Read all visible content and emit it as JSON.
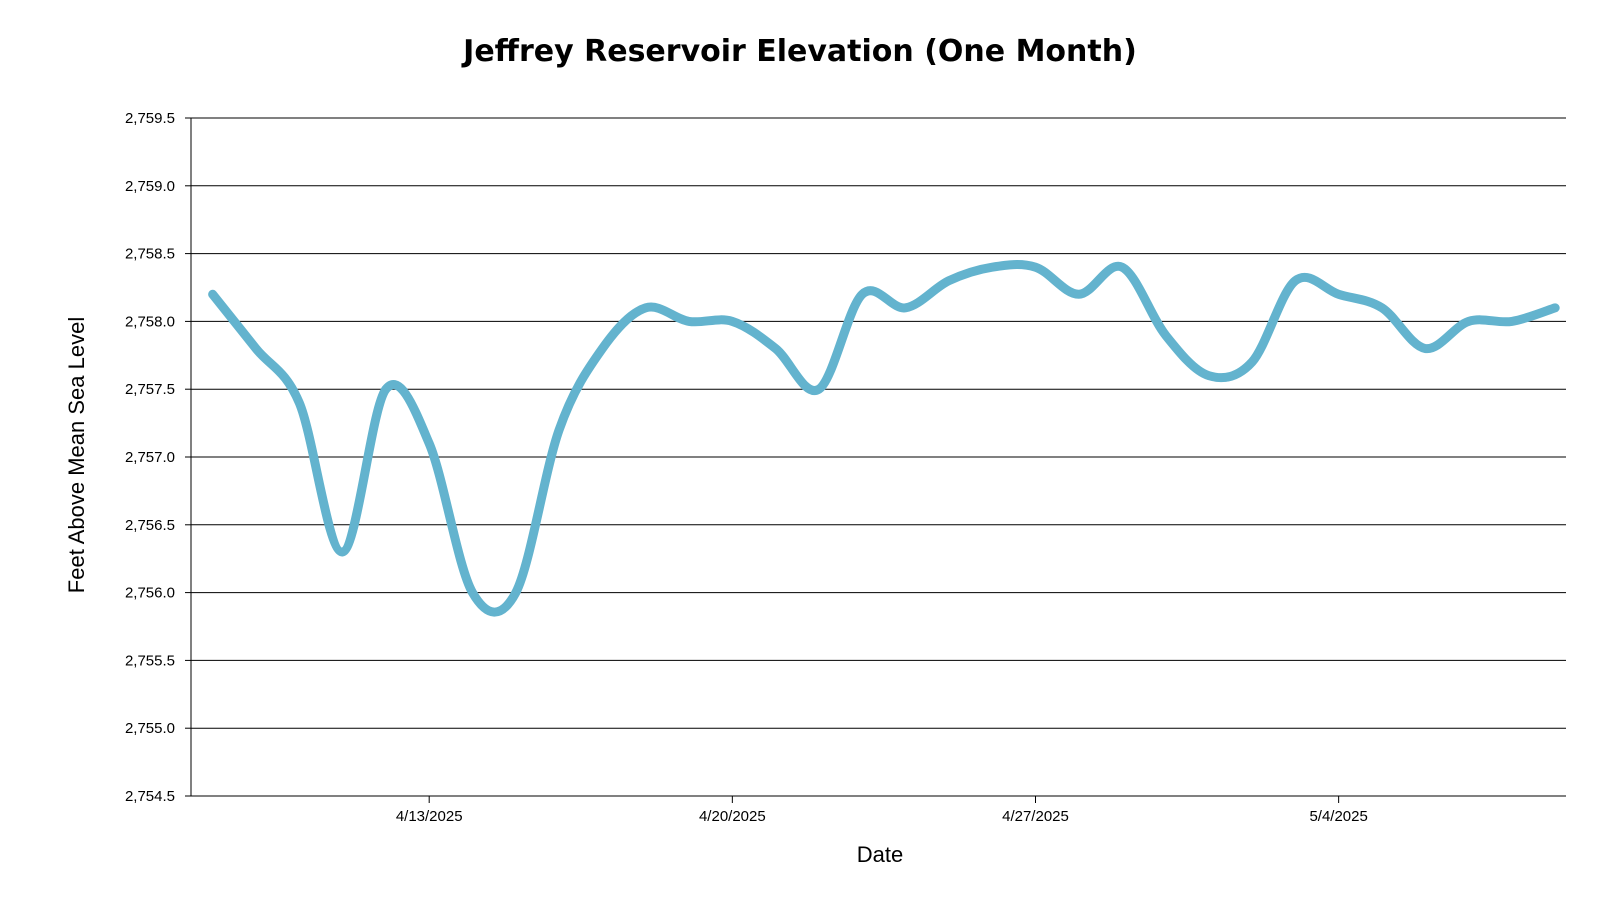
{
  "chart_data": {
    "type": "line",
    "title": "Jeffrey Reservoir Elevation (One Month)",
    "xlabel": "Date",
    "ylabel": "Feet Above Mean Sea Level",
    "ylim": [
      2754.5,
      2759.5
    ],
    "y_ticks": [
      2754.5,
      2755.0,
      2755.5,
      2756.0,
      2756.5,
      2757.0,
      2757.5,
      2758.0,
      2758.5,
      2759.0,
      2759.5
    ],
    "y_tick_labels": [
      "2,754.5",
      "2,755.0",
      "2,755.5",
      "2,756.0",
      "2,756.5",
      "2,757.0",
      "2,757.5",
      "2,758.0",
      "2,758.5",
      "2,759.0",
      "2,759.5"
    ],
    "x_range": [
      "2025-04-07T12:00",
      "2025-05-09T06:00"
    ],
    "x_ticks": [
      "2025-04-13",
      "2025-04-20",
      "2025-04-27",
      "2025-05-04"
    ],
    "x_tick_labels": [
      "4/13/2025",
      "4/20/2025",
      "4/27/2025",
      "5/4/2025"
    ],
    "grid": "horizontal",
    "colors": {
      "series": "#63b3ce"
    },
    "series": [
      {
        "name": "",
        "x": [
          "2025-04-08",
          "2025-04-09",
          "2025-04-10",
          "2025-04-11",
          "2025-04-12",
          "2025-04-13",
          "2025-04-14",
          "2025-04-15",
          "2025-04-16",
          "2025-04-17",
          "2025-04-18",
          "2025-04-19",
          "2025-04-20",
          "2025-04-21",
          "2025-04-22",
          "2025-04-23",
          "2025-04-24",
          "2025-04-25",
          "2025-04-26",
          "2025-04-27",
          "2025-04-28",
          "2025-04-29",
          "2025-04-30",
          "2025-05-01",
          "2025-05-02",
          "2025-05-03",
          "2025-05-04",
          "2025-05-05",
          "2025-05-06",
          "2025-05-07",
          "2025-05-08",
          "2025-05-09"
        ],
        "y": [
          2758.2,
          2757.8,
          2757.4,
          2756.3,
          2757.5,
          2757.1,
          2756.0,
          2756.0,
          2757.2,
          2757.8,
          2758.1,
          2758.0,
          2758.0,
          2757.8,
          2757.5,
          2758.2,
          2758.1,
          2758.3,
          2758.4,
          2758.4,
          2758.2,
          2758.4,
          2757.9,
          2757.6,
          2757.7,
          2758.3,
          2758.2,
          2758.1,
          2757.8,
          2758.0,
          2758.0,
          2758.1
        ]
      }
    ]
  }
}
